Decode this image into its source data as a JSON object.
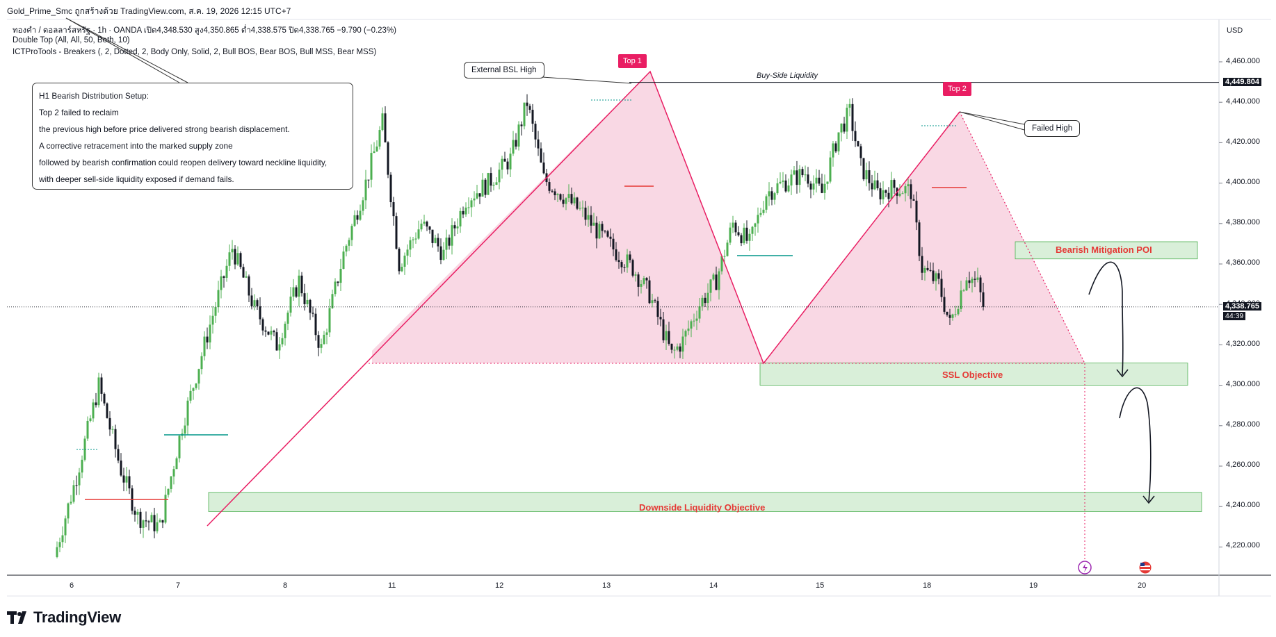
{
  "window": {
    "title": "Gold_Prime_Smc ถูกสร้างด้วย TradingView.com, ส.ค. 19, 2026 12:15 UTC+7"
  },
  "header": {
    "symbol_line_prefix": "ทองคำ / ดอลลาร์สหรัฐ · 1h · OANDA",
    "open_label": "เปิด",
    "open_value": "4,348.530",
    "high_label": "สูง",
    "high_value": "4,350.865",
    "low_label": "ต่ำ",
    "low_value": "4,338.575",
    "close_label": "ปิด",
    "close_value": "4,338.765",
    "change": "−9.790 (−0.23%)",
    "indicator_1": "Double Top (All, All, 50, Both, 10)",
    "indicator_2": "ICTProTools - Breakers (, 2, Dotted, 2, Body Only, Solid, 2, Bull BOS, Bear BOS, Bull MSS, Bear MSS)"
  },
  "price_axis": {
    "currency": "USD",
    "ticks": [
      "4,460.000",
      "4,440.000",
      "4,420.000",
      "4,400.000",
      "4,380.000",
      "4,360.000",
      "4,340.000",
      "4,320.000",
      "4,300.000",
      "4,280.000",
      "4,260.000",
      "4,240.000",
      "4,220.000"
    ],
    "bsl_price": "4,449.804",
    "last_price": "4,338.765",
    "countdown": "44:39"
  },
  "time_axis": {
    "labels": [
      "6",
      "7",
      "8",
      "11",
      "12",
      "13",
      "14",
      "15",
      "18",
      "19",
      "20"
    ]
  },
  "callout": {
    "lines": [
      "H1 Bearish Distribution Setup:",
      "Top 2 failed to reclaim",
      "the previous high before price delivered strong bearish displacement.",
      "A corrective retracement into the marked supply zone",
      "followed by bearish confirmation could reopen delivery toward neckline liquidity,",
      "with deeper sell-side liquidity exposed if demand fails."
    ]
  },
  "annotations": {
    "external_bsl": "External BSL High",
    "top1": "Top 1",
    "top2": "Top 2",
    "buy_side_liquidity": "Buy-Side Liquidity",
    "failed_high": "Failed High",
    "bearish_poi": "Bearish Mitigation POI",
    "ssl_objective": "SSL Objective",
    "downside_objective": "Downside Liquidity Objective"
  },
  "brand": {
    "name": "TradingView"
  },
  "colors": {
    "bull": "#4caf50",
    "bear": "#131722",
    "pattern_line": "#e91e63",
    "pattern_fill": "#f8d7e3",
    "zone_fill": "#d9efd9",
    "zone_border": "#4caf50",
    "zone_text": "#e53935",
    "bsl_line": "#131722",
    "bos_teal": "#009688",
    "bos_red": "#e53935"
  },
  "chart_data": {
    "type": "candlestick",
    "symbol": "XAUUSD",
    "timeframe": "1h",
    "y_range": [
      4212,
      4470
    ],
    "levels": {
      "buy_side_liquidity": 4449.804,
      "last_price": 4338.765,
      "top1": 4449.8,
      "top2": 4435.5,
      "neckline": 4311,
      "bearish_poi": [
        4362.5,
        4371
      ],
      "ssl_objective": [
        4300,
        4311
      ],
      "downside_objective": [
        4237.5,
        4247
      ]
    },
    "price_path": [
      [
        0,
        4215
      ],
      [
        8,
        4255
      ],
      [
        16,
        4300
      ],
      [
        24,
        4258
      ],
      [
        30,
        4235
      ],
      [
        38,
        4230
      ],
      [
        46,
        4280
      ],
      [
        56,
        4330
      ],
      [
        64,
        4368
      ],
      [
        72,
        4338
      ],
      [
        80,
        4320
      ],
      [
        88,
        4352
      ],
      [
        96,
        4318
      ],
      [
        104,
        4365
      ],
      [
        112,
        4400
      ],
      [
        118,
        4430
      ],
      [
        124,
        4360
      ],
      [
        132,
        4380
      ],
      [
        140,
        4365
      ],
      [
        148,
        4392
      ],
      [
        156,
        4400
      ],
      [
        164,
        4412
      ],
      [
        170,
        4440
      ],
      [
        176,
        4402
      ],
      [
        182,
        4395
      ],
      [
        190,
        4385
      ],
      [
        196,
        4375
      ],
      [
        202,
        4366
      ],
      [
        208,
        4358
      ],
      [
        214,
        4345
      ],
      [
        222,
        4315
      ],
      [
        226,
        4322
      ],
      [
        232,
        4340
      ],
      [
        238,
        4352
      ],
      [
        244,
        4380
      ],
      [
        250,
        4370
      ],
      [
        256,
        4395
      ],
      [
        262,
        4400
      ],
      [
        270,
        4405
      ],
      [
        276,
        4395
      ],
      [
        282,
        4425
      ],
      [
        286,
        4435
      ],
      [
        290,
        4408
      ],
      [
        296,
        4395
      ],
      [
        302,
        4398
      ],
      [
        308,
        4396
      ],
      [
        312,
        4358
      ],
      [
        318,
        4350
      ],
      [
        322,
        4330
      ],
      [
        328,
        4355
      ],
      [
        332,
        4350
      ],
      [
        334,
        4339
      ]
    ]
  }
}
